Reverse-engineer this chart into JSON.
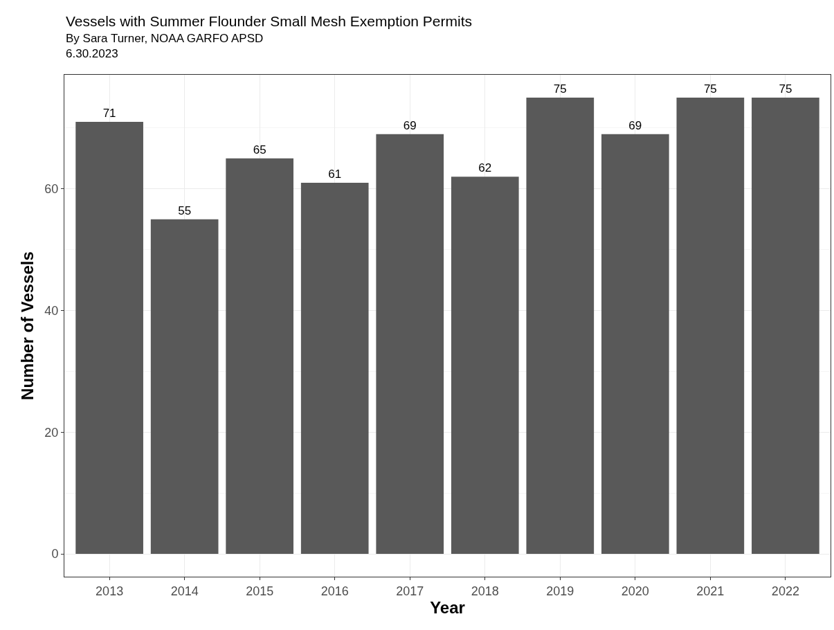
{
  "chart_data": {
    "type": "bar",
    "title": "Vessels with Summer Flounder Small Mesh Exemption Permits",
    "subtitle": "By Sara Turner, NOAA GARFO APSD\n6.30.2023",
    "xlabel": "Year",
    "ylabel": "Number of Vessels",
    "categories": [
      "2013",
      "2014",
      "2015",
      "2016",
      "2017",
      "2018",
      "2019",
      "2020",
      "2021",
      "2022"
    ],
    "values": [
      71,
      55,
      65,
      61,
      69,
      62,
      75,
      69,
      75,
      75
    ],
    "color": "#595959",
    "ylim": [
      -3.75,
      78.75
    ],
    "yticks": [
      0,
      20,
      40,
      60
    ],
    "grid": true,
    "data_labels": true
  }
}
